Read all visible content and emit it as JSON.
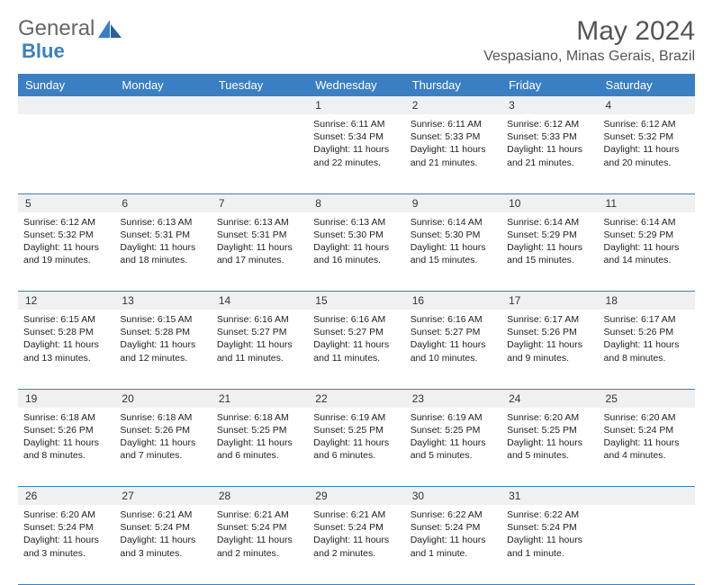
{
  "brand": {
    "part1": "General",
    "part2": "Blue"
  },
  "title": "May 2024",
  "location": "Vespasiano, Minas Gerais, Brazil",
  "colors": {
    "accent": "#3a7fc4",
    "daynum_bg": "#eef0f2",
    "text": "#222222"
  },
  "weekdays": [
    "Sunday",
    "Monday",
    "Tuesday",
    "Wednesday",
    "Thursday",
    "Friday",
    "Saturday"
  ],
  "weeks": [
    [
      null,
      null,
      null,
      {
        "d": "1",
        "sr": "Sunrise: 6:11 AM",
        "ss": "Sunset: 5:34 PM",
        "dl1": "Daylight: 11 hours",
        "dl2": "and 22 minutes."
      },
      {
        "d": "2",
        "sr": "Sunrise: 6:11 AM",
        "ss": "Sunset: 5:33 PM",
        "dl1": "Daylight: 11 hours",
        "dl2": "and 21 minutes."
      },
      {
        "d": "3",
        "sr": "Sunrise: 6:12 AM",
        "ss": "Sunset: 5:33 PM",
        "dl1": "Daylight: 11 hours",
        "dl2": "and 21 minutes."
      },
      {
        "d": "4",
        "sr": "Sunrise: 6:12 AM",
        "ss": "Sunset: 5:32 PM",
        "dl1": "Daylight: 11 hours",
        "dl2": "and 20 minutes."
      }
    ],
    [
      {
        "d": "5",
        "sr": "Sunrise: 6:12 AM",
        "ss": "Sunset: 5:32 PM",
        "dl1": "Daylight: 11 hours",
        "dl2": "and 19 minutes."
      },
      {
        "d": "6",
        "sr": "Sunrise: 6:13 AM",
        "ss": "Sunset: 5:31 PM",
        "dl1": "Daylight: 11 hours",
        "dl2": "and 18 minutes."
      },
      {
        "d": "7",
        "sr": "Sunrise: 6:13 AM",
        "ss": "Sunset: 5:31 PM",
        "dl1": "Daylight: 11 hours",
        "dl2": "and 17 minutes."
      },
      {
        "d": "8",
        "sr": "Sunrise: 6:13 AM",
        "ss": "Sunset: 5:30 PM",
        "dl1": "Daylight: 11 hours",
        "dl2": "and 16 minutes."
      },
      {
        "d": "9",
        "sr": "Sunrise: 6:14 AM",
        "ss": "Sunset: 5:30 PM",
        "dl1": "Daylight: 11 hours",
        "dl2": "and 15 minutes."
      },
      {
        "d": "10",
        "sr": "Sunrise: 6:14 AM",
        "ss": "Sunset: 5:29 PM",
        "dl1": "Daylight: 11 hours",
        "dl2": "and 15 minutes."
      },
      {
        "d": "11",
        "sr": "Sunrise: 6:14 AM",
        "ss": "Sunset: 5:29 PM",
        "dl1": "Daylight: 11 hours",
        "dl2": "and 14 minutes."
      }
    ],
    [
      {
        "d": "12",
        "sr": "Sunrise: 6:15 AM",
        "ss": "Sunset: 5:28 PM",
        "dl1": "Daylight: 11 hours",
        "dl2": "and 13 minutes."
      },
      {
        "d": "13",
        "sr": "Sunrise: 6:15 AM",
        "ss": "Sunset: 5:28 PM",
        "dl1": "Daylight: 11 hours",
        "dl2": "and 12 minutes."
      },
      {
        "d": "14",
        "sr": "Sunrise: 6:16 AM",
        "ss": "Sunset: 5:27 PM",
        "dl1": "Daylight: 11 hours",
        "dl2": "and 11 minutes."
      },
      {
        "d": "15",
        "sr": "Sunrise: 6:16 AM",
        "ss": "Sunset: 5:27 PM",
        "dl1": "Daylight: 11 hours",
        "dl2": "and 11 minutes."
      },
      {
        "d": "16",
        "sr": "Sunrise: 6:16 AM",
        "ss": "Sunset: 5:27 PM",
        "dl1": "Daylight: 11 hours",
        "dl2": "and 10 minutes."
      },
      {
        "d": "17",
        "sr": "Sunrise: 6:17 AM",
        "ss": "Sunset: 5:26 PM",
        "dl1": "Daylight: 11 hours",
        "dl2": "and 9 minutes."
      },
      {
        "d": "18",
        "sr": "Sunrise: 6:17 AM",
        "ss": "Sunset: 5:26 PM",
        "dl1": "Daylight: 11 hours",
        "dl2": "and 8 minutes."
      }
    ],
    [
      {
        "d": "19",
        "sr": "Sunrise: 6:18 AM",
        "ss": "Sunset: 5:26 PM",
        "dl1": "Daylight: 11 hours",
        "dl2": "and 8 minutes."
      },
      {
        "d": "20",
        "sr": "Sunrise: 6:18 AM",
        "ss": "Sunset: 5:26 PM",
        "dl1": "Daylight: 11 hours",
        "dl2": "and 7 minutes."
      },
      {
        "d": "21",
        "sr": "Sunrise: 6:18 AM",
        "ss": "Sunset: 5:25 PM",
        "dl1": "Daylight: 11 hours",
        "dl2": "and 6 minutes."
      },
      {
        "d": "22",
        "sr": "Sunrise: 6:19 AM",
        "ss": "Sunset: 5:25 PM",
        "dl1": "Daylight: 11 hours",
        "dl2": "and 6 minutes."
      },
      {
        "d": "23",
        "sr": "Sunrise: 6:19 AM",
        "ss": "Sunset: 5:25 PM",
        "dl1": "Daylight: 11 hours",
        "dl2": "and 5 minutes."
      },
      {
        "d": "24",
        "sr": "Sunrise: 6:20 AM",
        "ss": "Sunset: 5:25 PM",
        "dl1": "Daylight: 11 hours",
        "dl2": "and 5 minutes."
      },
      {
        "d": "25",
        "sr": "Sunrise: 6:20 AM",
        "ss": "Sunset: 5:24 PM",
        "dl1": "Daylight: 11 hours",
        "dl2": "and 4 minutes."
      }
    ],
    [
      {
        "d": "26",
        "sr": "Sunrise: 6:20 AM",
        "ss": "Sunset: 5:24 PM",
        "dl1": "Daylight: 11 hours",
        "dl2": "and 3 minutes."
      },
      {
        "d": "27",
        "sr": "Sunrise: 6:21 AM",
        "ss": "Sunset: 5:24 PM",
        "dl1": "Daylight: 11 hours",
        "dl2": "and 3 minutes."
      },
      {
        "d": "28",
        "sr": "Sunrise: 6:21 AM",
        "ss": "Sunset: 5:24 PM",
        "dl1": "Daylight: 11 hours",
        "dl2": "and 2 minutes."
      },
      {
        "d": "29",
        "sr": "Sunrise: 6:21 AM",
        "ss": "Sunset: 5:24 PM",
        "dl1": "Daylight: 11 hours",
        "dl2": "and 2 minutes."
      },
      {
        "d": "30",
        "sr": "Sunrise: 6:22 AM",
        "ss": "Sunset: 5:24 PM",
        "dl1": "Daylight: 11 hours",
        "dl2": "and 1 minute."
      },
      {
        "d": "31",
        "sr": "Sunrise: 6:22 AM",
        "ss": "Sunset: 5:24 PM",
        "dl1": "Daylight: 11 hours",
        "dl2": "and 1 minute."
      },
      null
    ]
  ]
}
